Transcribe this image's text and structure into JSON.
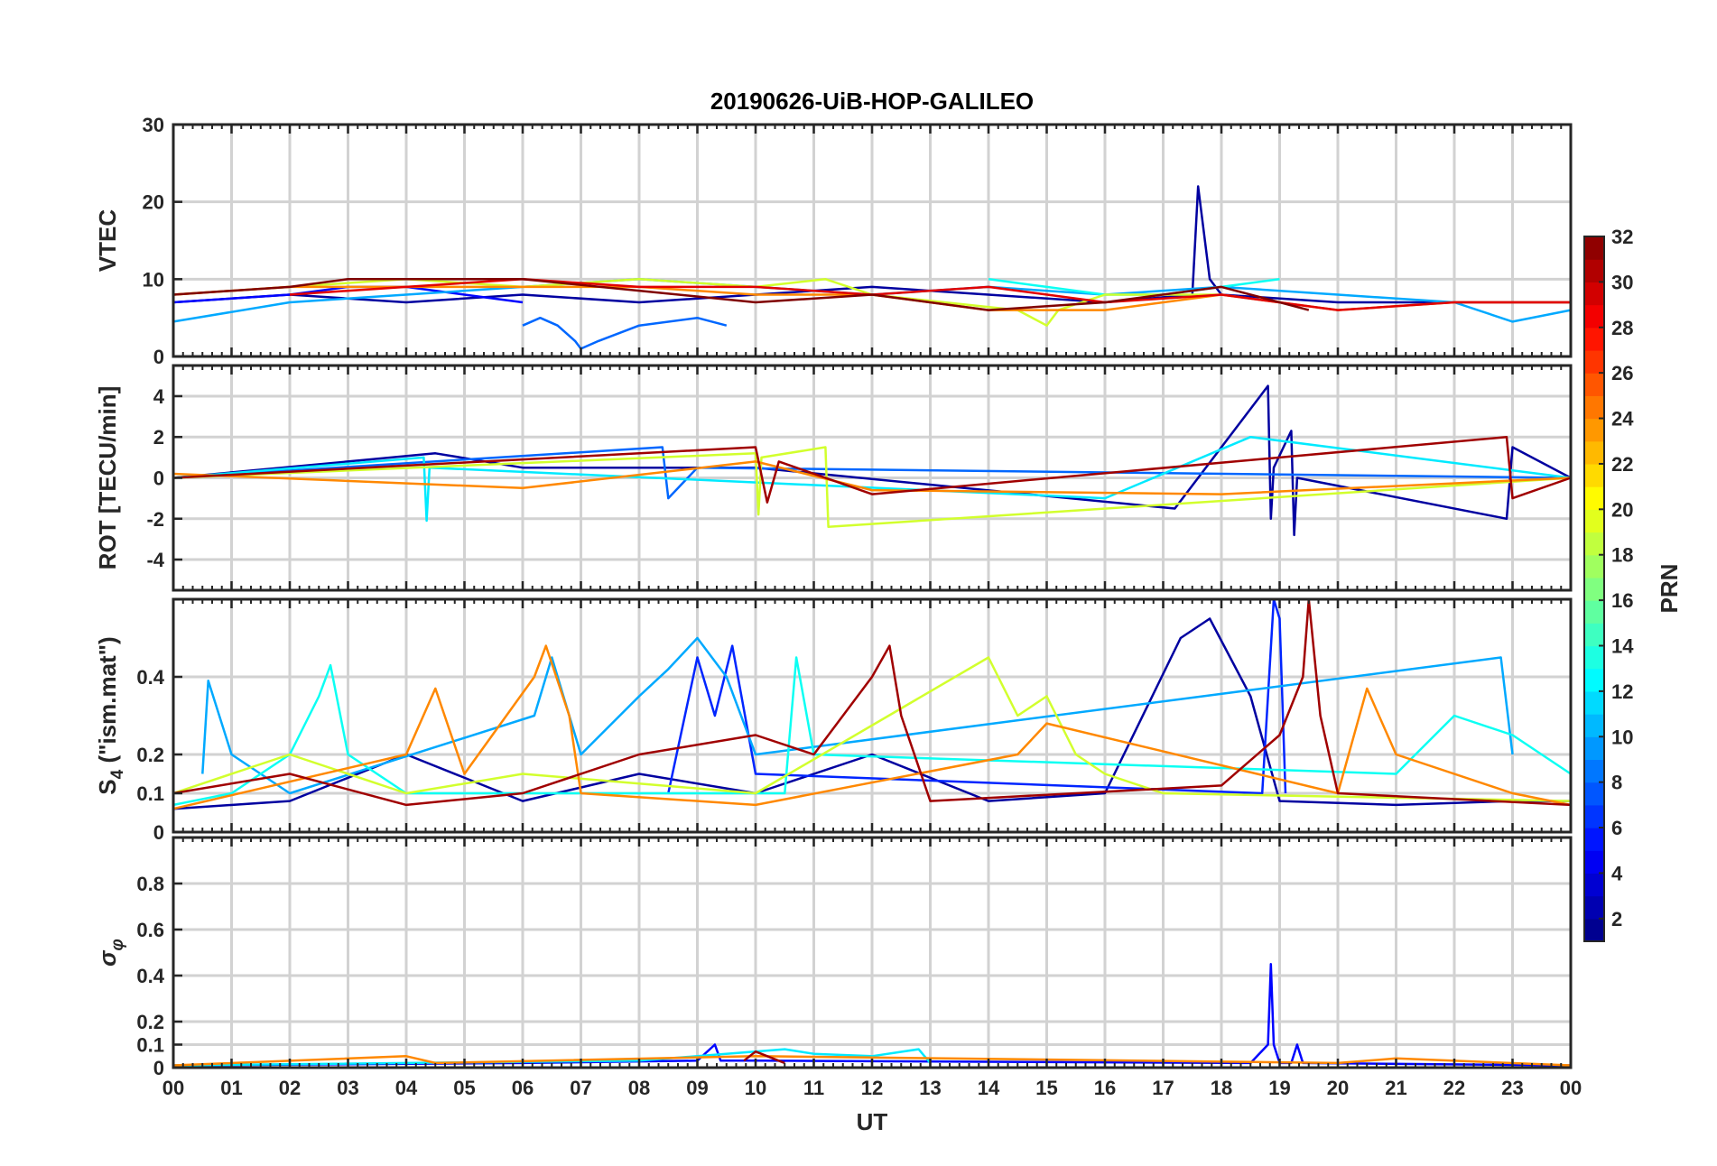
{
  "chart_data": {
    "type": "line",
    "title": "20190626-UiB-HOP-GALILEO",
    "xlabel": "UT",
    "x_ticks": [
      "00",
      "01",
      "02",
      "03",
      "04",
      "05",
      "06",
      "07",
      "08",
      "09",
      "10",
      "11",
      "12",
      "13",
      "14",
      "15",
      "16",
      "17",
      "18",
      "19",
      "20",
      "21",
      "22",
      "23",
      "00"
    ],
    "xlim": [
      0,
      24
    ],
    "grid": true,
    "colorbar": {
      "label": "PRN",
      "range": [
        1,
        32
      ],
      "ticks": [
        "2",
        "4",
        "6",
        "8",
        "10",
        "12",
        "14",
        "16",
        "18",
        "20",
        "22",
        "24",
        "26",
        "28",
        "30",
        "32"
      ],
      "colormap": "jet"
    },
    "panels": [
      {
        "ylabel": "VTEC",
        "ylim": [
          0,
          30
        ],
        "y_ticks": [
          {
            "v": 0,
            "t": "0"
          },
          {
            "v": 10,
            "t": "10"
          },
          {
            "v": 20,
            "t": "20"
          },
          {
            "v": 30,
            "t": "30"
          }
        ],
        "series": [
          {
            "prn": 2,
            "x": [
              0,
              2,
              4,
              6,
              8,
              10,
              12,
              14,
              16,
              17.5,
              17.6,
              17.8,
              18,
              20,
              22,
              24
            ],
            "y": [
              7,
              8,
              7,
              8,
              7,
              8,
              9,
              8,
              7,
              8,
              22,
              10,
              8,
              7,
              7,
              7
            ]
          },
          {
            "prn": 5,
            "x": [
              0,
              1,
              2,
              3,
              4,
              5,
              6
            ],
            "y": [
              7,
              7.5,
              8,
              9,
              9,
              8,
              7
            ]
          },
          {
            "prn": 8,
            "x": [
              6,
              6.3,
              6.6,
              6.9,
              7,
              7.3,
              8,
              9,
              9.5
            ],
            "y": [
              4,
              5,
              4,
              2,
              1,
              2,
              4,
              5,
              4
            ]
          },
          {
            "prn": 10,
            "x": [
              0,
              2,
              4,
              6,
              8,
              10,
              12,
              14,
              16,
              18,
              20,
              22,
              23,
              24
            ],
            "y": [
              4.5,
              7,
              8,
              9,
              10,
              9,
              8,
              9,
              8,
              9,
              8,
              7,
              4.5,
              6
            ]
          },
          {
            "prn": 13,
            "x": [
              14,
              15,
              16,
              17,
              18,
              19
            ],
            "y": [
              10,
              9,
              8,
              8,
              9,
              10
            ]
          },
          {
            "prn": 19,
            "x": [
              0,
              2,
              4,
              6,
              8,
              10,
              11.2,
              12,
              14.5,
              15,
              15.2,
              16,
              18
            ],
            "y": [
              8,
              9,
              10,
              9,
              10,
              9,
              10,
              8,
              6,
              4,
              6,
              8,
              8
            ]
          },
          {
            "prn": 24,
            "x": [
              0,
              2,
              4,
              6,
              8,
              10,
              12,
              14,
              16,
              18,
              20,
              22,
              24
            ],
            "y": [
              8,
              9,
              9,
              9,
              9,
              8,
              8,
              6,
              6,
              8,
              6,
              7,
              7
            ]
          },
          {
            "prn": 29,
            "x": [
              2,
              4,
              6,
              8,
              10,
              12,
              14,
              16,
              18,
              20,
              22,
              24
            ],
            "y": [
              8,
              9,
              10,
              9,
              9,
              8,
              9,
              7,
              8,
              6,
              7,
              7
            ]
          },
          {
            "prn": 32,
            "x": [
              0,
              2,
              3,
              4,
              5,
              6,
              10,
              12,
              14,
              16,
              18,
              19.5
            ],
            "y": [
              8,
              9,
              10,
              10,
              10,
              10,
              7,
              8,
              6,
              7,
              9,
              6
            ]
          }
        ]
      },
      {
        "ylabel": "ROT [TECU/min]",
        "ylim": [
          -5.5,
          5.5
        ],
        "y_ticks": [
          {
            "v": -4,
            "t": "-4"
          },
          {
            "v": -2,
            "t": "-2"
          },
          {
            "v": 0,
            "t": "0"
          },
          {
            "v": 2,
            "t": "2"
          },
          {
            "v": 4,
            "t": "4"
          }
        ],
        "series": [
          {
            "prn": 2,
            "x": [
              0,
              4.5,
              6,
              10,
              17.2,
              18.8,
              18.85,
              18.9,
              19.2,
              19.25,
              19.3,
              22.9,
              23,
              24
            ],
            "y": [
              0,
              1.2,
              0.5,
              0.5,
              -1.5,
              4.5,
              -2,
              0.5,
              2.3,
              -2.8,
              0,
              -2,
              1.5,
              0
            ]
          },
          {
            "prn": 8,
            "x": [
              0,
              8.4,
              8.5,
              9,
              24
            ],
            "y": [
              0,
              1.5,
              -1,
              0.5,
              0
            ]
          },
          {
            "prn": 12,
            "x": [
              0,
              4.3,
              4.35,
              4.4,
              16,
              18.5,
              24
            ],
            "y": [
              0,
              1,
              -2.1,
              0.5,
              -1,
              2,
              0
            ]
          },
          {
            "prn": 19,
            "x": [
              0,
              10,
              10.05,
              10.1,
              11.2,
              11.25,
              24
            ],
            "y": [
              0,
              1.2,
              -1.8,
              1,
              1.5,
              -2.4,
              0
            ]
          },
          {
            "prn": 24,
            "x": [
              0,
              6,
              10,
              12,
              18,
              24
            ],
            "y": [
              0.2,
              -0.5,
              0.8,
              -0.6,
              -0.8,
              0
            ]
          },
          {
            "prn": 31,
            "x": [
              0,
              10,
              10.2,
              10.4,
              12,
              22.9,
              23,
              24
            ],
            "y": [
              0,
              1.5,
              -1.2,
              0.8,
              -0.8,
              2,
              -1,
              0
            ]
          }
        ]
      },
      {
        "ylabel": "S_4 (\"ism.mat\")",
        "ylabel_main": "S",
        "ylabel_sub": "4",
        "ylabel_rest": " (\"ism.mat\")",
        "ylim": [
          0,
          0.6
        ],
        "y_ticks": [
          {
            "v": 0,
            "t": "0"
          },
          {
            "v": 0.1,
            "t": "0.1"
          },
          {
            "v": 0.2,
            "t": "0.2"
          },
          {
            "v": 0.4,
            "t": "0.4"
          }
        ],
        "series": [
          {
            "prn": 2,
            "x": [
              0,
              2,
              4,
              6,
              8,
              10,
              12,
              14,
              16,
              17.3,
              17.8,
              18.5,
              19,
              21,
              23,
              24
            ],
            "y": [
              0.06,
              0.08,
              0.2,
              0.08,
              0.15,
              0.1,
              0.2,
              0.08,
              0.1,
              0.5,
              0.55,
              0.35,
              0.08,
              0.07,
              0.08,
              0.08
            ]
          },
          {
            "prn": 6,
            "x": [
              8.5,
              9,
              9.3,
              9.6,
              10,
              18.7,
              18.9,
              19,
              19.1
            ],
            "y": [
              0.1,
              0.45,
              0.3,
              0.48,
              0.15,
              0.1,
              0.6,
              0.55,
              0.1
            ]
          },
          {
            "prn": 10,
            "x": [
              0.5,
              0.6,
              1,
              2,
              6.2,
              6.5,
              7,
              8,
              8.5,
              9,
              9.5,
              10,
              22.8,
              23
            ],
            "y": [
              0.15,
              0.39,
              0.2,
              0.1,
              0.3,
              0.45,
              0.2,
              0.35,
              0.42,
              0.5,
              0.4,
              0.2,
              0.45,
              0.2
            ]
          },
          {
            "prn": 13,
            "x": [
              0,
              1,
              2,
              2.5,
              2.7,
              3,
              4,
              10.5,
              10.7,
              11,
              21,
              22,
              23,
              24
            ],
            "y": [
              0.07,
              0.1,
              0.2,
              0.35,
              0.43,
              0.2,
              0.1,
              0.1,
              0.45,
              0.2,
              0.15,
              0.3,
              0.25,
              0.15
            ]
          },
          {
            "prn": 19,
            "x": [
              0,
              2,
              4,
              6,
              10,
              14,
              14.5,
              15,
              15.5,
              16,
              17,
              24
            ],
            "y": [
              0.1,
              0.2,
              0.1,
              0.15,
              0.1,
              0.45,
              0.3,
              0.35,
              0.2,
              0.15,
              0.1,
              0.08
            ]
          },
          {
            "prn": 24,
            "x": [
              0,
              4,
              4.5,
              5,
              6.2,
              6.4,
              6.8,
              7,
              10,
              14.5,
              15,
              20,
              20.5,
              21,
              23,
              24
            ],
            "y": [
              0.06,
              0.2,
              0.37,
              0.15,
              0.4,
              0.48,
              0.3,
              0.1,
              0.07,
              0.2,
              0.28,
              0.1,
              0.37,
              0.2,
              0.1,
              0.07
            ]
          },
          {
            "prn": 31,
            "x": [
              0,
              2,
              4,
              6,
              8,
              10,
              11,
              12,
              12.3,
              12.5,
              13,
              18,
              19,
              19.4,
              19.5,
              19.7,
              20,
              24
            ],
            "y": [
              0.1,
              0.15,
              0.07,
              0.1,
              0.2,
              0.25,
              0.2,
              0.4,
              0.48,
              0.3,
              0.08,
              0.12,
              0.25,
              0.4,
              0.6,
              0.3,
              0.1,
              0.07
            ]
          }
        ]
      },
      {
        "ylabel": "σ_φ",
        "ylabel_main": "σ",
        "ylabel_sub": "φ",
        "ylim": [
          0,
          1
        ],
        "y_ticks": [
          {
            "v": 0,
            "t": "0"
          },
          {
            "v": 0.1,
            "t": "0.1"
          },
          {
            "v": 0.2,
            "t": "0.2"
          },
          {
            "v": 0.4,
            "t": "0.4"
          },
          {
            "v": 0.6,
            "t": "0.6"
          },
          {
            "v": 0.8,
            "t": "0.8"
          }
        ],
        "series": [
          {
            "prn": 5,
            "x": [
              0,
              6,
              9,
              9.3,
              9.4,
              10,
              18.5,
              18.8,
              18.85,
              18.9,
              19,
              19.2,
              19.3,
              19.4,
              24
            ],
            "y": [
              0.01,
              0.02,
              0.03,
              0.1,
              0.03,
              0.03,
              0.02,
              0.1,
              0.45,
              0.1,
              0.02,
              0.02,
              0.1,
              0.02,
              0.01
            ]
          },
          {
            "prn": 12,
            "x": [
              0,
              8,
              9,
              10.5,
              11,
              12,
              12.8,
              13
            ],
            "y": [
              0.01,
              0.03,
              0.05,
              0.08,
              0.06,
              0.05,
              0.08,
              0.02
            ]
          },
          {
            "prn": 24,
            "x": [
              0,
              4,
              4.5,
              10,
              20,
              21,
              24
            ],
            "y": [
              0.01,
              0.05,
              0.02,
              0.05,
              0.02,
              0.04,
              0.01
            ]
          },
          {
            "prn": 31,
            "x": [
              9.8,
              10,
              10.2,
              10.5
            ],
            "y": [
              0.03,
              0.07,
              0.05,
              0.02
            ]
          }
        ]
      }
    ]
  }
}
